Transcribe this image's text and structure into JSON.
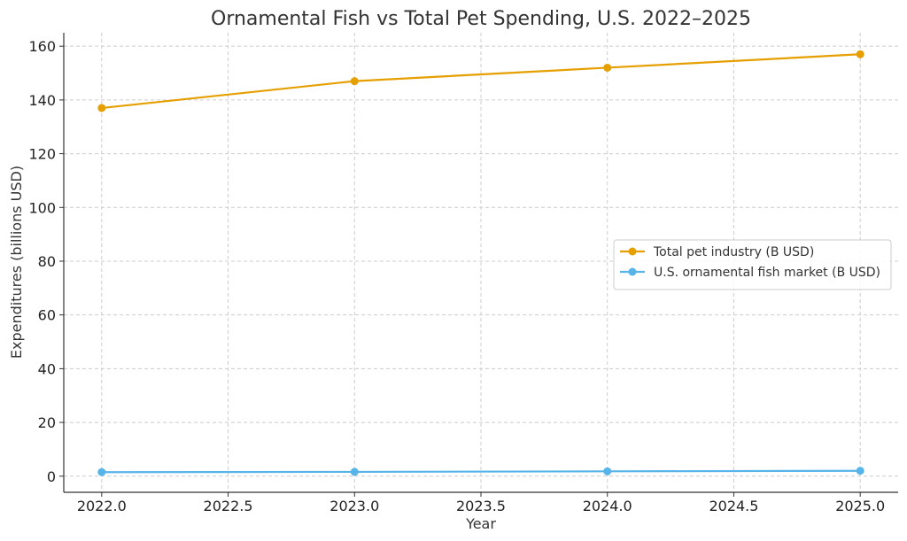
{
  "chart_data": {
    "type": "line",
    "title": "Ornamental Fish vs Total Pet Spending, U.S. 2022–2025",
    "xlabel": "Year",
    "ylabel": "Expenditures (billions USD)",
    "x": [
      2022,
      2023,
      2024,
      2025
    ],
    "xlim": [
      2021.85,
      2025.15
    ],
    "ylim": [
      -6,
      165
    ],
    "xticks": [
      2022.0,
      2022.5,
      2023.0,
      2023.5,
      2024.0,
      2024.5,
      2025.0
    ],
    "xtick_labels": [
      "2022.0",
      "2022.5",
      "2023.0",
      "2023.5",
      "2024.0",
      "2024.5",
      "2025.0"
    ],
    "yticks": [
      0,
      20,
      40,
      60,
      80,
      100,
      120,
      140,
      160
    ],
    "ytick_labels": [
      "0",
      "20",
      "40",
      "60",
      "80",
      "100",
      "120",
      "140",
      "160"
    ],
    "grid": true,
    "legend_position": "center-right",
    "series": [
      {
        "name": "Total pet industry (B USD)",
        "color": "#E69F00",
        "values": [
          137,
          147,
          152,
          157
        ]
      },
      {
        "name": "U.S. ornamental fish market (B USD)",
        "color": "#56B4E9",
        "values": [
          1.5,
          1.6,
          1.8,
          2.0
        ]
      }
    ]
  }
}
